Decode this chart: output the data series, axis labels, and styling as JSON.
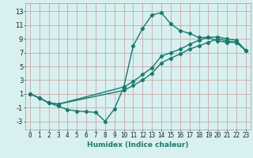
{
  "xlabel": "Humidex (Indice chaleur)",
  "bg_color": "#d8f0f0",
  "grid_color": "#c8a8a8",
  "line_color": "#1a7a6e",
  "marker": "D",
  "markersize": 2.2,
  "linewidth": 1.0,
  "xlim": [
    -0.5,
    23.5
  ],
  "ylim": [
    -4.2,
    14.2
  ],
  "xticks": [
    0,
    1,
    2,
    3,
    4,
    5,
    6,
    7,
    8,
    9,
    10,
    11,
    12,
    13,
    14,
    15,
    16,
    17,
    18,
    19,
    20,
    21,
    22,
    23
  ],
  "yticks": [
    -3,
    -1,
    1,
    3,
    5,
    7,
    9,
    11,
    13
  ],
  "lines": [
    {
      "x": [
        0,
        1,
        2,
        3,
        4,
        5,
        6,
        7,
        8,
        9,
        10,
        11,
        12,
        13,
        14,
        15,
        16,
        17,
        18,
        19,
        20,
        21,
        22,
        23
      ],
      "y": [
        1,
        0.4,
        -0.3,
        -0.8,
        -1.3,
        -1.5,
        -1.6,
        -1.7,
        -3.0,
        -1.2,
        2.0,
        8.0,
        10.5,
        12.5,
        12.8,
        11.2,
        10.2,
        9.8,
        9.2,
        9.2,
        8.7,
        8.5,
        8.5,
        7.3
      ]
    },
    {
      "x": [
        0,
        1,
        2,
        3,
        10,
        11,
        12,
        13,
        14,
        15,
        16,
        17,
        18,
        19,
        20,
        21,
        22,
        23
      ],
      "y": [
        1,
        0.4,
        -0.3,
        -0.5,
        2.0,
        2.8,
        3.8,
        4.8,
        6.5,
        7.0,
        7.5,
        8.2,
        8.8,
        9.2,
        9.3,
        9.0,
        8.8,
        7.3
      ]
    },
    {
      "x": [
        0,
        1,
        2,
        3,
        10,
        11,
        12,
        13,
        14,
        15,
        16,
        17,
        18,
        19,
        20,
        21,
        22,
        23
      ],
      "y": [
        1,
        0.4,
        -0.3,
        -0.5,
        1.5,
        2.2,
        3.0,
        4.0,
        5.5,
        6.2,
        6.8,
        7.5,
        8.0,
        8.5,
        9.0,
        8.7,
        8.5,
        7.3
      ]
    }
  ]
}
